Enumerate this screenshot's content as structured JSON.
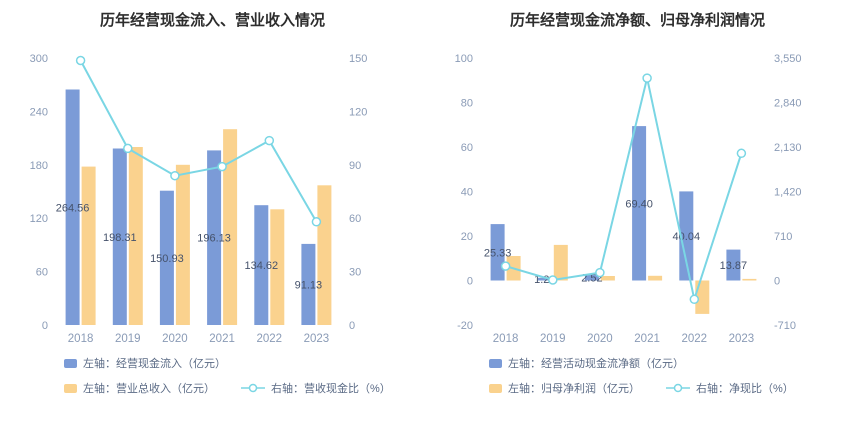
{
  "colors": {
    "bar_blue": "#7B9BD7",
    "bar_orange": "#FAD28E",
    "line_cyan": "#7AD6E4",
    "title_text": "#2d2d2d",
    "axis_text": "#8A9BB6",
    "label_text": "#45526B",
    "background": "#ffffff"
  },
  "chart_data": [
    {
      "type": "bar",
      "title": "历年经营现金流入、营业收入情况",
      "categories": [
        "2018",
        "2019",
        "2020",
        "2021",
        "2022",
        "2023"
      ],
      "series": [
        {
          "name": "左轴：经营现金流入（亿元）",
          "type": "bar",
          "axis": "left",
          "color": "#7B9BD7",
          "values": [
            264.56,
            198.31,
            150.93,
            196.13,
            134.62,
            91.13
          ],
          "labels": [
            "264.56",
            "198.31",
            "150.93",
            "196.13",
            "134.62",
            "91.13"
          ]
        },
        {
          "name": "左轴：营业总收入（亿元）",
          "type": "bar",
          "axis": "left",
          "color": "#FAD28E",
          "values": [
            178,
            200,
            180,
            220,
            130,
            157
          ]
        },
        {
          "name": "右轴：营收现金比（%）",
          "type": "line",
          "axis": "right",
          "color": "#7AD6E4",
          "values": [
            148.6,
            99.2,
            83.9,
            89,
            103.6,
            58
          ]
        }
      ],
      "left_axis": {
        "min": 0,
        "max": 300,
        "ticks": [
          "300",
          "240",
          "180",
          "120",
          "60",
          "0"
        ]
      },
      "right_axis": {
        "min": 0,
        "max": 150,
        "ticks": [
          "150",
          "120",
          "90",
          "60",
          "30",
          "0"
        ]
      },
      "grid": false,
      "legend_position": "bottom"
    },
    {
      "type": "bar",
      "title": "历年经营现金流净额、归母净利润情况",
      "categories": [
        "2018",
        "2019",
        "2020",
        "2021",
        "2022",
        "2023"
      ],
      "series": [
        {
          "name": "左轴：经营活动现金流净额（亿元）",
          "type": "bar",
          "axis": "left",
          "color": "#7B9BD7",
          "values": [
            25.33,
            1.21,
            2.52,
            69.4,
            40.04,
            13.87
          ],
          "labels": [
            "25.33",
            "1.21",
            "2.52",
            "69.40",
            "40.04",
            "13.87"
          ]
        },
        {
          "name": "左轴：归母净利润（亿元）",
          "type": "bar",
          "axis": "left",
          "color": "#FAD28E",
          "values": [
            11,
            16,
            2,
            2.1,
            -15,
            0.7
          ]
        },
        {
          "name": "右轴：净现比（%）",
          "type": "line",
          "axis": "right",
          "color": "#7AD6E4",
          "values": [
            230,
            8,
            126,
            3230,
            -300,
            2030
          ]
        }
      ],
      "left_axis": {
        "min": -20,
        "max": 100,
        "ticks": [
          "100",
          "80",
          "60",
          "40",
          "20",
          "0",
          "-20"
        ]
      },
      "right_axis": {
        "min": -710,
        "max": 3550,
        "ticks": [
          "3,550",
          "2,840",
          "2,130",
          "1,420",
          "710",
          "0",
          "-710"
        ]
      },
      "grid": false,
      "legend_position": "bottom"
    }
  ]
}
